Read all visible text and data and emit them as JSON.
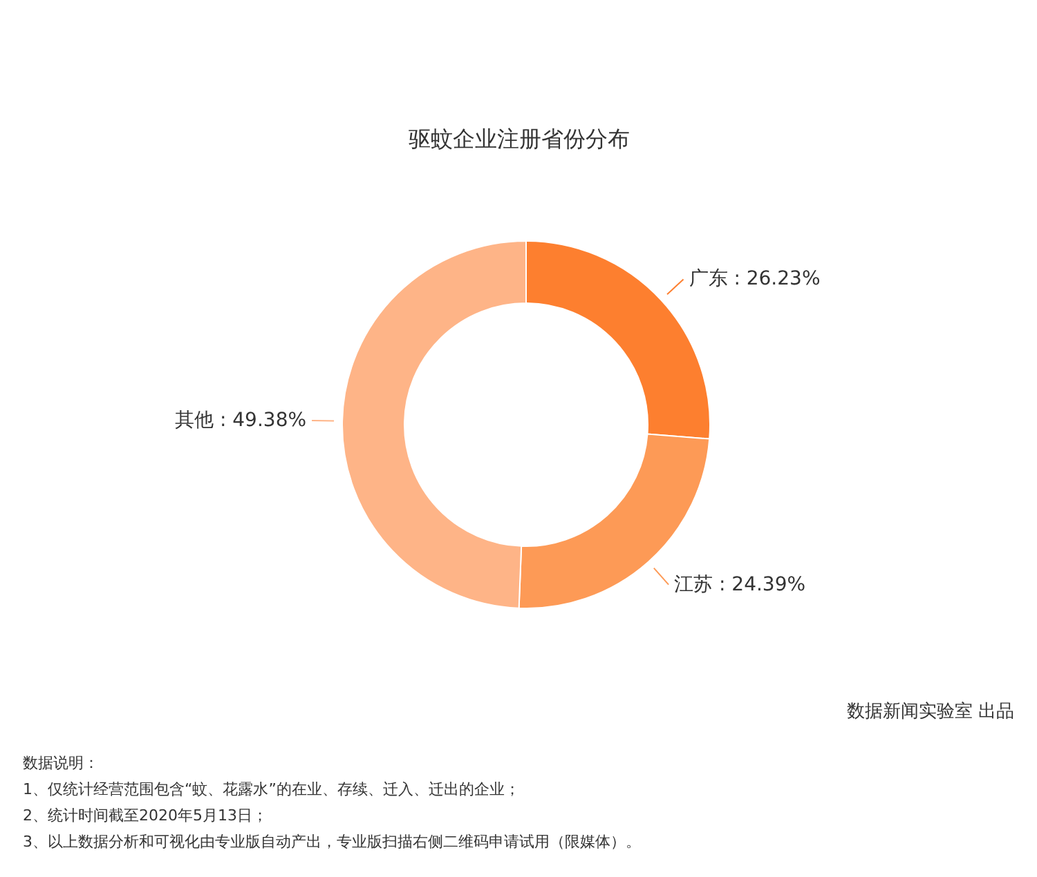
{
  "chart_data": {
    "type": "donut",
    "title": "驱蚊企业注册省份分布",
    "categories": [
      "广东",
      "江苏",
      "其他"
    ],
    "values": [
      26.23,
      24.39,
      49.38
    ],
    "colors": [
      "#fd7f2f",
      "#fd9a56",
      "#feb487"
    ],
    "value_labels": [
      ": 26.23%",
      ": 24.39%",
      ": 49.38%"
    ],
    "annotations": [
      "数据说明：",
      "1、仅统计经营范围包含“蚊、花露水”的在业、存续、迁入、迁出的企业；",
      "2、统计时间截至2020年5月13日；",
      "3、以上数据分析和可视化由专业版自动产出，专业版扫描右侧二维码申请试用（限媒体）。",
      "数据新闻实验室 出品"
    ]
  }
}
